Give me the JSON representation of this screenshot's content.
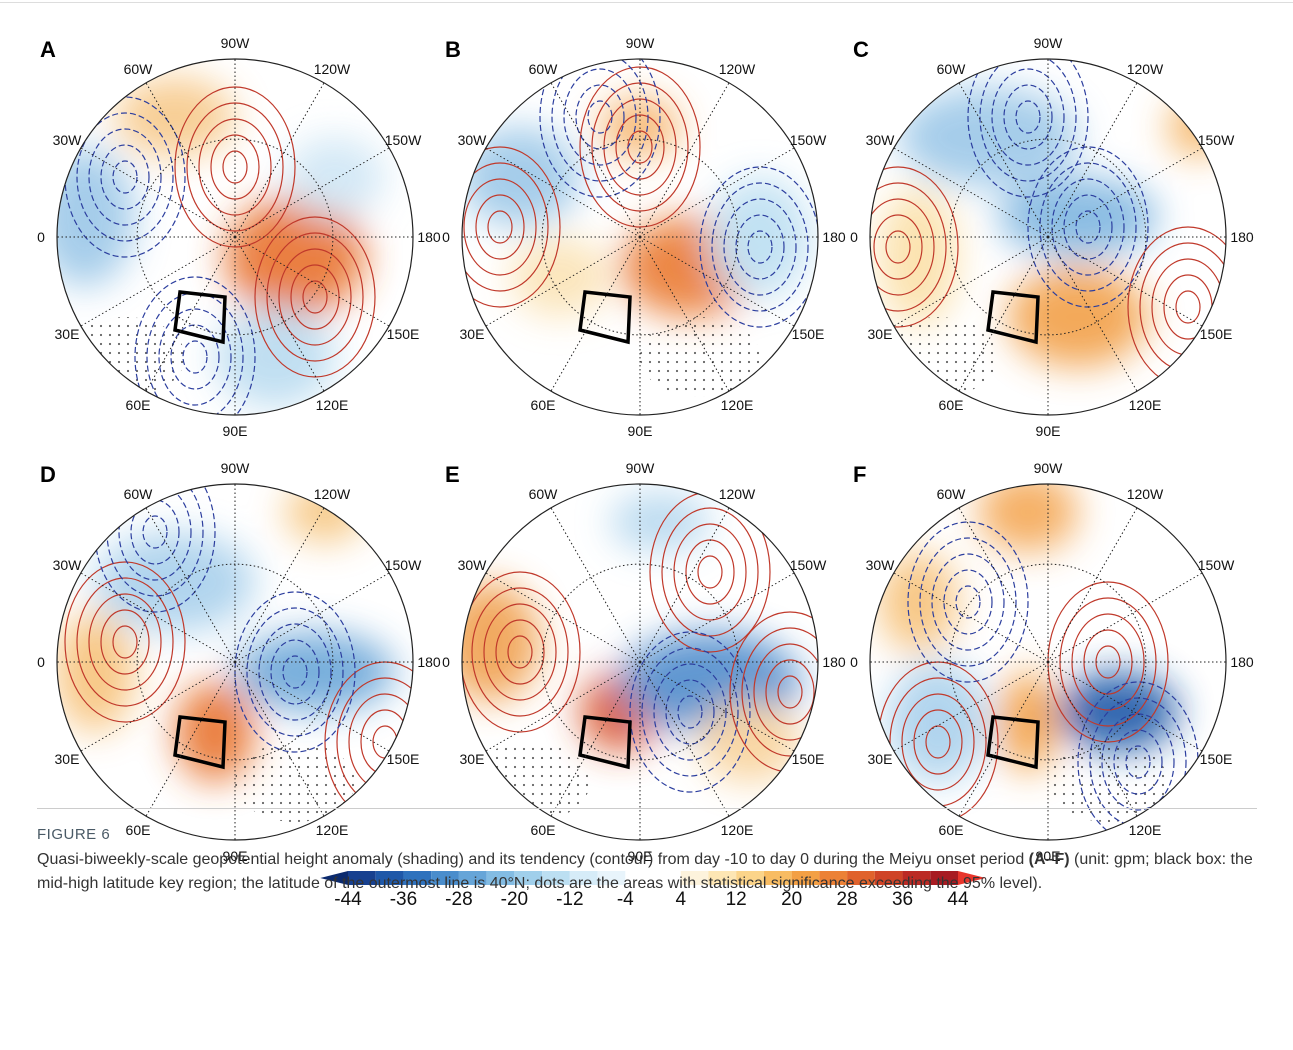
{
  "panels": [
    {
      "label": "A"
    },
    {
      "label": "B"
    },
    {
      "label": "C"
    },
    {
      "label": "D"
    },
    {
      "label": "E"
    },
    {
      "label": "F"
    }
  ],
  "longitude_labels": [
    "180",
    "150W",
    "120W",
    "90W",
    "60W",
    "30W",
    "0",
    "30E",
    "60E",
    "90E",
    "120E",
    "150E"
  ],
  "colorbar": {
    "ticks": [
      -44,
      -36,
      -28,
      -20,
      -12,
      -4,
      4,
      12,
      20,
      28,
      36,
      44
    ],
    "negative_colors": [
      "#0b2a6e",
      "#17408f",
      "#1f58a8",
      "#2f72bd",
      "#4a8dcc",
      "#66a5d8",
      "#83bce3",
      "#a0cfeb",
      "#bcdff2",
      "#d6ecf8",
      "#e8f4fb"
    ],
    "positive_colors": [
      "#fdf3dc",
      "#fde6b4",
      "#fbd48a",
      "#f8bc62",
      "#f3a045",
      "#ec8136",
      "#e0622c",
      "#cf4427",
      "#bb2a24",
      "#a71b22",
      "#e8352b"
    ]
  },
  "caption": {
    "label": "FIGURE 6",
    "text_start": "Quasi-biweekly-scale geopotential height anomaly (shading) and its tendency (contour) from day -10 to day 0 during the Meiyu onset period",
    "text_bold": "(A–F)",
    "text_end": "(unit: gpm; black box: the mid-high latitude key region; the latitude of the outermost line is 40°N; dots are the areas with statistical significance exceeding the 95% level)."
  }
}
